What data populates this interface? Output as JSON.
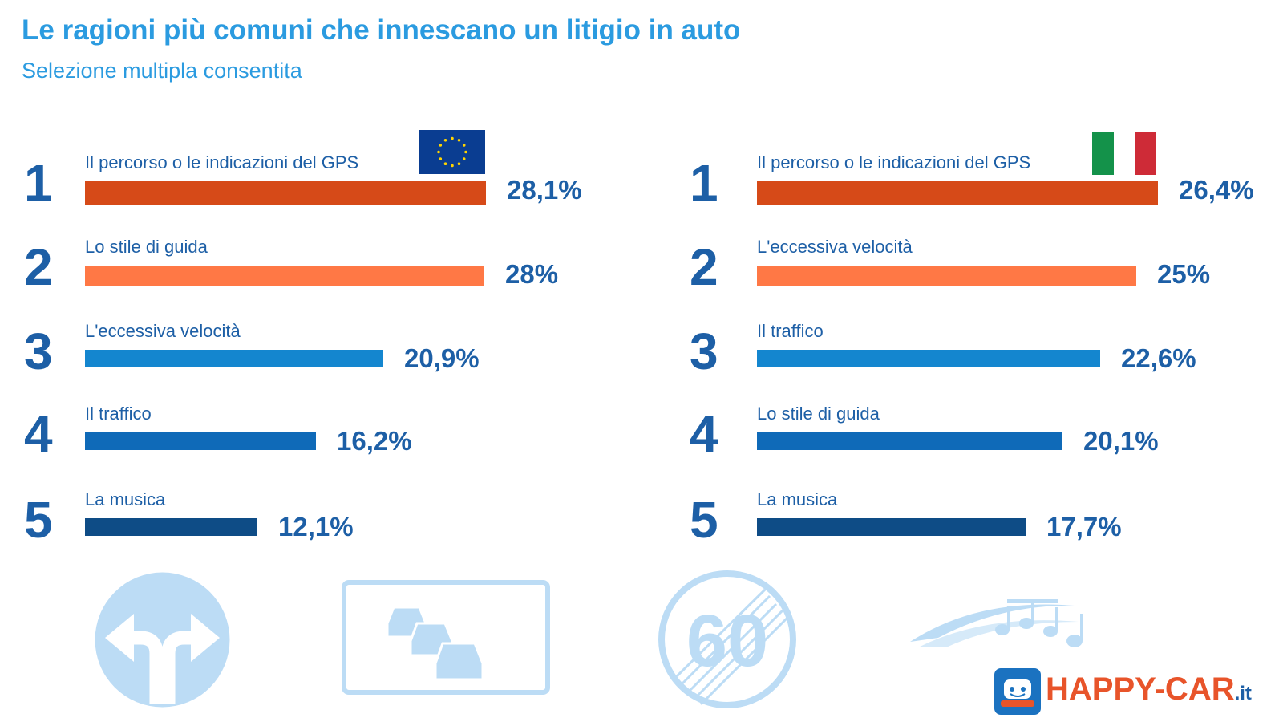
{
  "header": {
    "title": "Le ragioni più comuni che innescano un litigio in auto",
    "subtitle": "Selezione multipla consentita"
  },
  "chart_data": [
    {
      "type": "bar",
      "orientation": "horizontal",
      "flag": "eu-flag",
      "xlim": [
        0,
        28.1
      ],
      "ranks": [
        "1",
        "2",
        "3",
        "4",
        "5"
      ],
      "categories": [
        "Il percorso o le indicazioni del GPS",
        "Lo stile di guida",
        "L'eccessiva velocità",
        "Il traffico",
        "La musica"
      ],
      "values": [
        28.1,
        28,
        20.9,
        16.2,
        12.1
      ],
      "value_labels": [
        "28,1%",
        "28%",
        "20,9%",
        "16,2%",
        "12,1%"
      ],
      "colors": [
        "#d64a18",
        "#ff7845",
        "#1486cf",
        "#0f6ab8",
        "#0e4c86"
      ]
    },
    {
      "type": "bar",
      "orientation": "horizontal",
      "flag": "italy-flag",
      "xlim": [
        0,
        26.4
      ],
      "ranks": [
        "1",
        "2",
        "3",
        "4",
        "5"
      ],
      "categories": [
        "Il percorso o le indicazioni del GPS",
        "L'eccessiva velocità",
        "Il traffico",
        "Lo stile di guida",
        "La musica"
      ],
      "values": [
        26.4,
        25,
        22.6,
        20.1,
        17.7
      ],
      "value_labels": [
        "26,4%",
        "25%",
        "22,6%",
        "20,1%",
        "17,7%"
      ],
      "colors": [
        "#d64a18",
        "#ff7845",
        "#1486cf",
        "#0f6ab8",
        "#0e4c86"
      ]
    }
  ],
  "icons": [
    "direction-sign-icon",
    "traffic-jam-sign-icon",
    "end-speed-limit-sign-icon",
    "music-notes-icon"
  ],
  "speed_sign": {
    "number": "60"
  },
  "logo": {
    "name": "HAPPY-CAR",
    "tld": ".it"
  }
}
